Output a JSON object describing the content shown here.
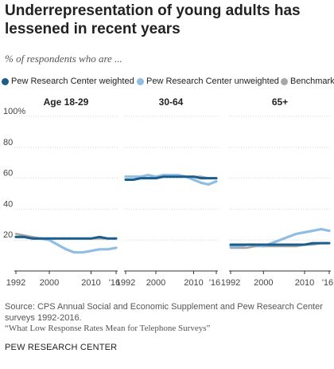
{
  "title": "Underrepresentation of young adults has lessened in recent years",
  "subtitle": "% of respondents who are ...",
  "source": "Source: CPS Annual Social and Economic Supplement and Pew Research Center surveys 1992-2016.",
  "note": "“What Low Response Rates Mean for Telephone Surveys”",
  "brand": "PEW RESEARCH CENTER",
  "colors": {
    "weighted": "#1b5e8c",
    "unweighted": "#8fbde3",
    "benchmark": "#a6a6a6"
  },
  "chart_data": {
    "type": "line",
    "legend": [
      "Pew Research Center weighted",
      "Pew Research Center unweighted",
      "Benchmark"
    ],
    "ylim": [
      0,
      100
    ],
    "yticks": [
      "100%",
      "80",
      "60",
      "40",
      "20"
    ],
    "xlim": [
      1992,
      2016
    ],
    "xtick_labels": [
      "1992",
      "2000",
      "2010",
      "'16"
    ],
    "grid": true,
    "panels": [
      {
        "title": "Age 18-29",
        "series": [
          {
            "name": "Pew Research Center weighted",
            "x": [
              1992,
              1994,
              1996,
              1998,
              2000,
              2002,
              2004,
              2006,
              2008,
              2010,
              2012,
              2014,
              2016
            ],
            "y": [
              22,
              22,
              21,
              21,
              21,
              21,
              21,
              21,
              21,
              21,
              22,
              21,
              21
            ]
          },
          {
            "name": "Pew Research Center unweighted",
            "x": [
              1992,
              1994,
              1996,
              1998,
              2000,
              2002,
              2004,
              2006,
              2008,
              2010,
              2012,
              2014,
              2016
            ],
            "y": [
              22,
              22,
              21,
              21,
              20,
              17,
              14,
              12,
              12,
              13,
              14,
              14,
              15
            ]
          },
          {
            "name": "Benchmark",
            "x": [
              1992,
              1994,
              1996,
              1998,
              2000,
              2002,
              2004,
              2006,
              2008,
              2010,
              2012,
              2014,
              2016
            ],
            "y": [
              24,
              23,
              22,
              21,
              21,
              21,
              21,
              21,
              21,
              21,
              21,
              21,
              21
            ]
          }
        ]
      },
      {
        "title": "30-64",
        "series": [
          {
            "name": "Pew Research Center weighted",
            "x": [
              1992,
              1994,
              1996,
              1998,
              2000,
              2002,
              2004,
              2006,
              2008,
              2010,
              2012,
              2014,
              2016
            ],
            "y": [
              59,
              59,
              60,
              60,
              60,
              61,
              61,
              61,
              61,
              61,
              60,
              60,
              60
            ]
          },
          {
            "name": "Pew Research Center unweighted",
            "x": [
              1992,
              1994,
              1996,
              1998,
              2000,
              2002,
              2004,
              2006,
              2008,
              2010,
              2012,
              2014,
              2016
            ],
            "y": [
              61,
              61,
              61,
              62,
              61,
              62,
              62,
              62,
              61,
              59,
              57,
              56,
              58
            ]
          },
          {
            "name": "Benchmark",
            "x": [
              1992,
              1994,
              1996,
              1998,
              2000,
              2002,
              2004,
              2006,
              2008,
              2010,
              2012,
              2014,
              2016
            ],
            "y": [
              59,
              59,
              60,
              60,
              61,
              61,
              61,
              61,
              61,
              61,
              61,
              60,
              60
            ]
          }
        ]
      },
      {
        "title": "65+",
        "series": [
          {
            "name": "Pew Research Center weighted",
            "x": [
              1992,
              1994,
              1996,
              1998,
              2000,
              2002,
              2004,
              2006,
              2008,
              2010,
              2012,
              2014,
              2016
            ],
            "y": [
              17,
              17,
              17,
              17,
              17,
              17,
              17,
              17,
              17,
              17,
              18,
              18,
              18
            ]
          },
          {
            "name": "Pew Research Center unweighted",
            "x": [
              1992,
              1994,
              1996,
              1998,
              2000,
              2002,
              2004,
              2006,
              2008,
              2010,
              2012,
              2014,
              2016
            ],
            "y": [
              16,
              16,
              17,
              17,
              16,
              18,
              20,
              22,
              24,
              25,
              26,
              27,
              26
            ]
          },
          {
            "name": "Benchmark",
            "x": [
              1992,
              1994,
              1996,
              1998,
              2000,
              2002,
              2004,
              2006,
              2008,
              2010,
              2012,
              2014,
              2016
            ],
            "y": [
              15,
              15,
              15,
              16,
              16,
              16,
              16,
              16,
              16,
              17,
              17,
              18,
              18
            ]
          }
        ]
      }
    ]
  }
}
